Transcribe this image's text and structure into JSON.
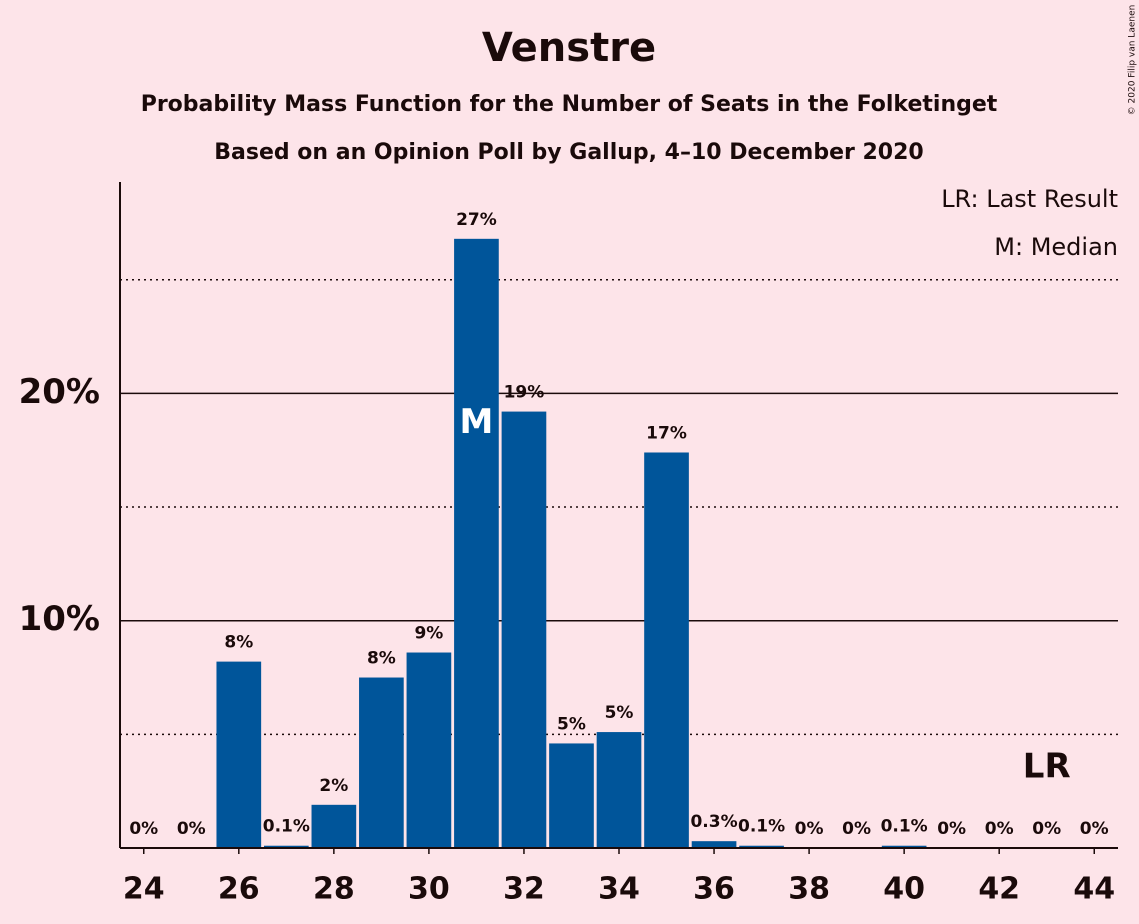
{
  "chart_data": {
    "type": "bar",
    "title": "Venstre",
    "subtitle": "Probability Mass Function for the Number of Seats in the Folketinget",
    "subtitle2": "Based on an Opinion Poll by Gallup, 4–10 December 2020",
    "copyright": "© 2020 Filip van Laenen",
    "legend": [
      "LR: Last Result",
      "M: Median"
    ],
    "x": [
      24,
      25,
      26,
      27,
      28,
      29,
      30,
      31,
      32,
      33,
      34,
      35,
      36,
      37,
      38,
      39,
      40,
      41,
      42,
      43,
      44
    ],
    "values": [
      0,
      0,
      8.2,
      0.1,
      1.9,
      7.5,
      8.6,
      26.8,
      19.2,
      4.6,
      5.1,
      17.4,
      0.3,
      0.1,
      0,
      0,
      0.1,
      0,
      0,
      0,
      0
    ],
    "value_labels": [
      "0%",
      "0%",
      "8%",
      "0.1%",
      "2%",
      "8%",
      "9%",
      "27%",
      "19%",
      "5%",
      "5%",
      "17%",
      "0.3%",
      "0.1%",
      "0%",
      "0%",
      "0.1%",
      "0%",
      "0%",
      "0%",
      "0%"
    ],
    "color": "#00559a",
    "xlim": [
      23.5,
      44.5
    ],
    "xticks": [
      24,
      26,
      28,
      30,
      32,
      34,
      36,
      38,
      40,
      42,
      44
    ],
    "ylim": [
      0,
      29.3
    ],
    "yticks": [
      {
        "value": 10,
        "label": "10%"
      },
      {
        "value": 20,
        "label": "20%"
      }
    ],
    "minor_yticks": [
      5,
      15,
      25
    ],
    "grid": true,
    "annotations": [
      {
        "text": "M",
        "x": 31
      },
      {
        "text": "LR",
        "x": 43
      }
    ]
  }
}
